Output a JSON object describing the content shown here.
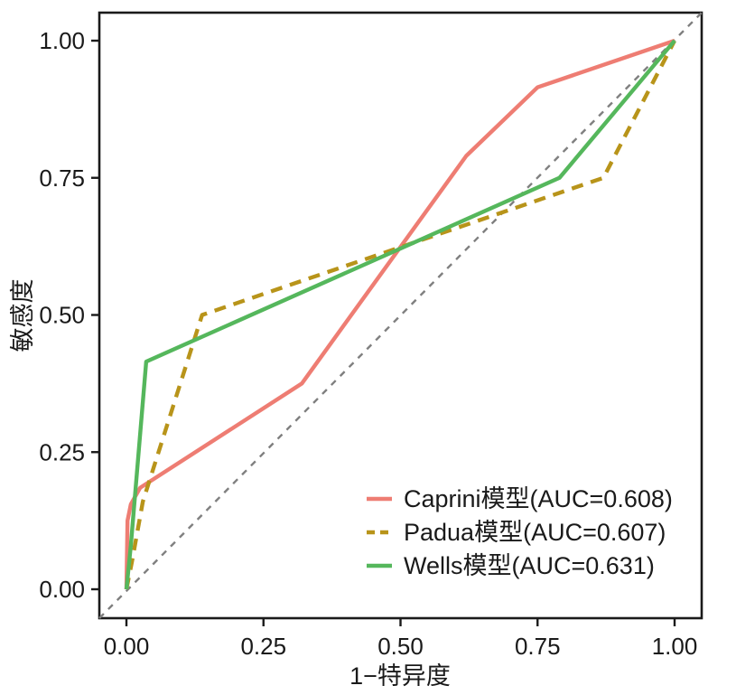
{
  "chart_data": {
    "type": "line",
    "title": "",
    "xlabel": "1−特异度",
    "ylabel": "敏感度",
    "xlim": [
      0,
      1
    ],
    "ylim": [
      0,
      1
    ],
    "grid": false,
    "x_tick_values": [
      0,
      0.25,
      0.5,
      0.75,
      1
    ],
    "x_tick_labels": [
      "0.00",
      "0.25",
      "0.50",
      "0.75",
      "1.00"
    ],
    "y_tick_values": [
      0,
      0.25,
      0.5,
      0.75,
      1
    ],
    "y_tick_labels": [
      "0.00",
      "0.25",
      "0.50",
      "0.75",
      "1.00"
    ],
    "legend_position": "inside-bottom-right",
    "reference_line": {
      "name": "chance-diagonal",
      "from": [
        0,
        0
      ],
      "to": [
        1,
        1
      ],
      "style": "dashed",
      "color": "#7f7f7f"
    },
    "series": [
      {
        "key": "caprini",
        "label": "Caprini模型(AUC=0.608)",
        "auc": "0.608",
        "color": "#EE7D73",
        "line_style": "solid",
        "points": [
          [
            0,
            0
          ],
          [
            0.002,
            0.125
          ],
          [
            0.008,
            0.155
          ],
          [
            0.025,
            0.185
          ],
          [
            0.32,
            0.375
          ],
          [
            0.62,
            0.79
          ],
          [
            0.75,
            0.915
          ],
          [
            1,
            1
          ]
        ]
      },
      {
        "key": "padua",
        "label": "Padua模型(AUC=0.607)",
        "auc": "0.607",
        "color": "#B8941A",
        "line_style": "dashed",
        "points": [
          [
            0,
            0
          ],
          [
            0.01,
            0.05
          ],
          [
            0.03,
            0.16
          ],
          [
            0.138,
            0.5
          ],
          [
            0.87,
            0.75
          ],
          [
            1,
            1
          ]
        ]
      },
      {
        "key": "wells",
        "label": "Wells模型(AUC=0.631)",
        "auc": "0.631",
        "color": "#55B75C",
        "line_style": "solid",
        "points": [
          [
            0,
            0
          ],
          [
            0.008,
            0.08
          ],
          [
            0.036,
            0.415
          ],
          [
            0.79,
            0.75
          ],
          [
            1,
            1
          ]
        ]
      }
    ]
  },
  "colors": {
    "axis": "#1a1a1a",
    "background": "#ffffff",
    "reference": "#7f7f7f"
  }
}
